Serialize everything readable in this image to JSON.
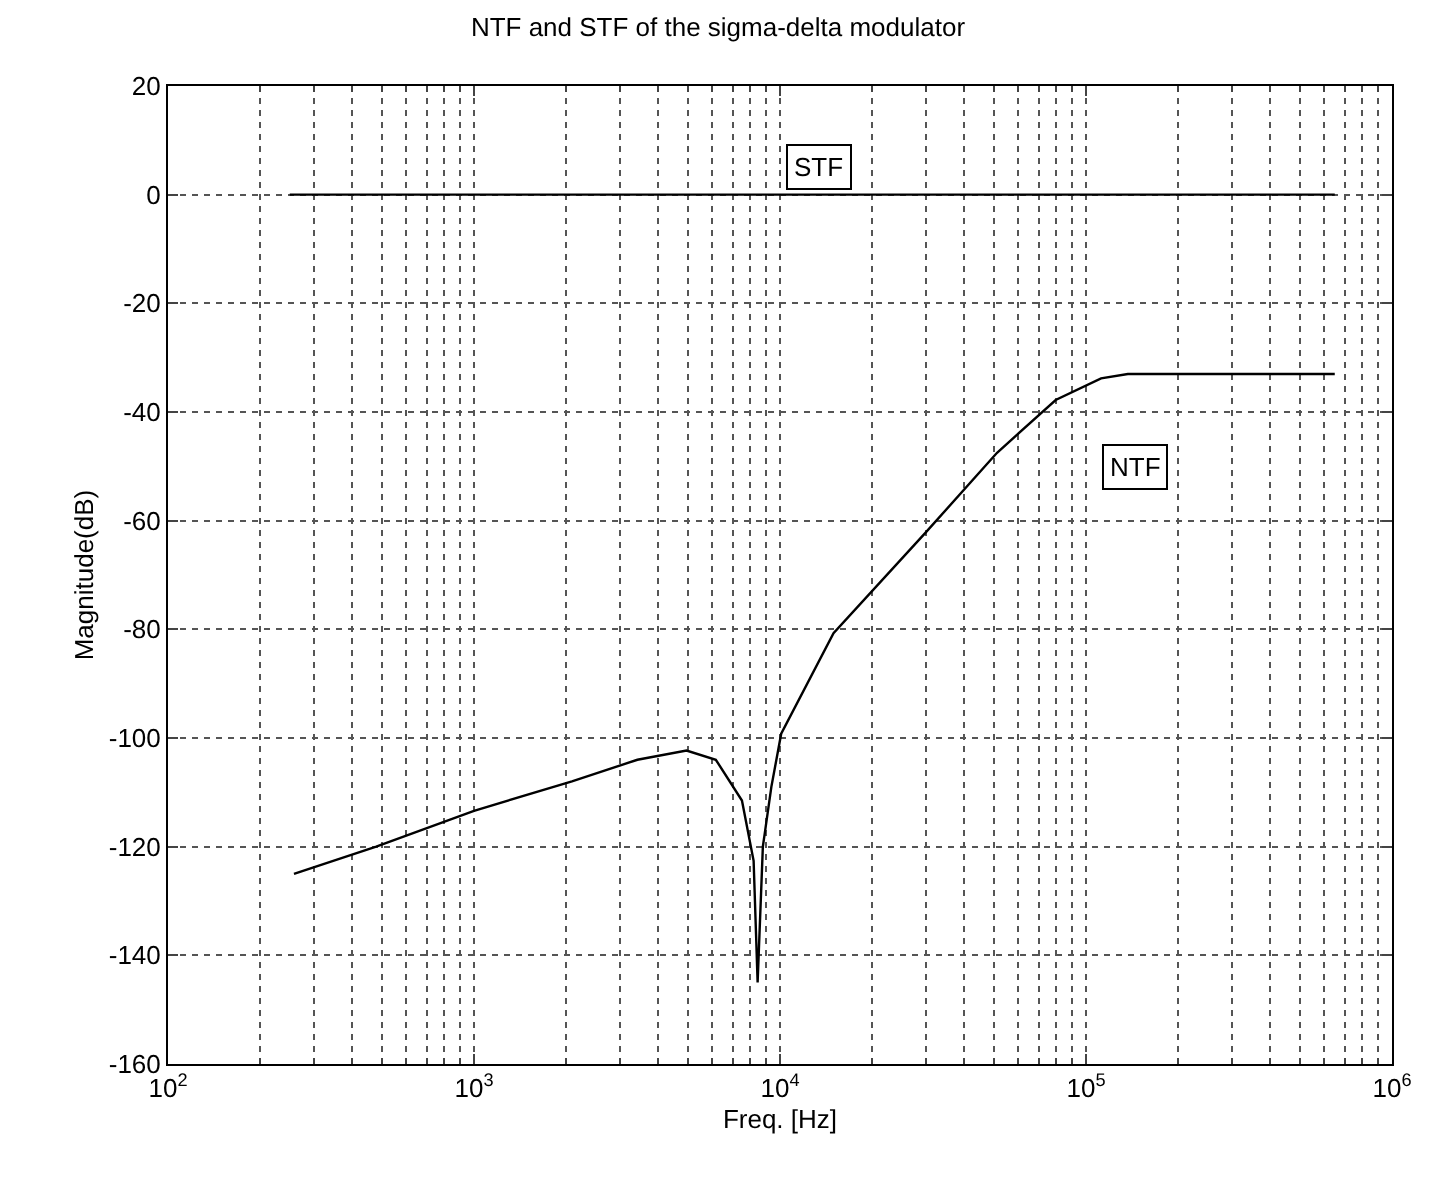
{
  "chart_data": {
    "type": "line",
    "title": "NTF and STF of the sigma-delta modulator",
    "xlabel": "Freq. [Hz]",
    "ylabel": "Magnitude(dB)",
    "log": "x",
    "grid": true,
    "line_style": "solid",
    "marker": "none",
    "xlim": [
      100,
      1000000
    ],
    "ylim": [
      -160,
      20
    ],
    "xticks": [
      {
        "value": 100,
        "label": "10$^{2}$"
      },
      {
        "value": 1000,
        "label": "10$^{3}$"
      },
      {
        "value": 10000,
        "label": "10$^{4}$"
      },
      {
        "value": 100000,
        "label": "10$^{5}$"
      },
      {
        "value": 1000000,
        "label": "10$^{6}$"
      }
    ],
    "yticks": [
      -160,
      -140,
      -120,
      -100,
      -80,
      -60,
      -40,
      -20,
      0,
      20
    ],
    "series": [
      {
        "color": "#000000",
        "x": [
          250,
          650000
        ],
        "values": [
          0,
          0
        ]
      },
      {
        "color": "#000000",
        "x": [
          258,
          479,
          1000,
          2090,
          3420,
          4950,
          6170,
          7510,
          8200,
          8450,
          8790,
          9370,
          10090,
          14960,
          29800,
          51200,
          79600,
          112000,
          137000,
          650000
        ],
        "values": [
          -125,
          -120,
          -113.4,
          -108,
          -104,
          -102.3,
          -104,
          -111.5,
          -122.6,
          -145,
          -120,
          -109,
          -99.2,
          -80.7,
          -62.3,
          -47.5,
          -37.8,
          -33.8,
          -33,
          -33
        ]
      }
    ],
    "annotations": [
      {
        "text": "STF",
        "x": 13500,
        "y": 5
      },
      {
        "text": "NTF",
        "x": 145000,
        "y": -50
      }
    ]
  }
}
